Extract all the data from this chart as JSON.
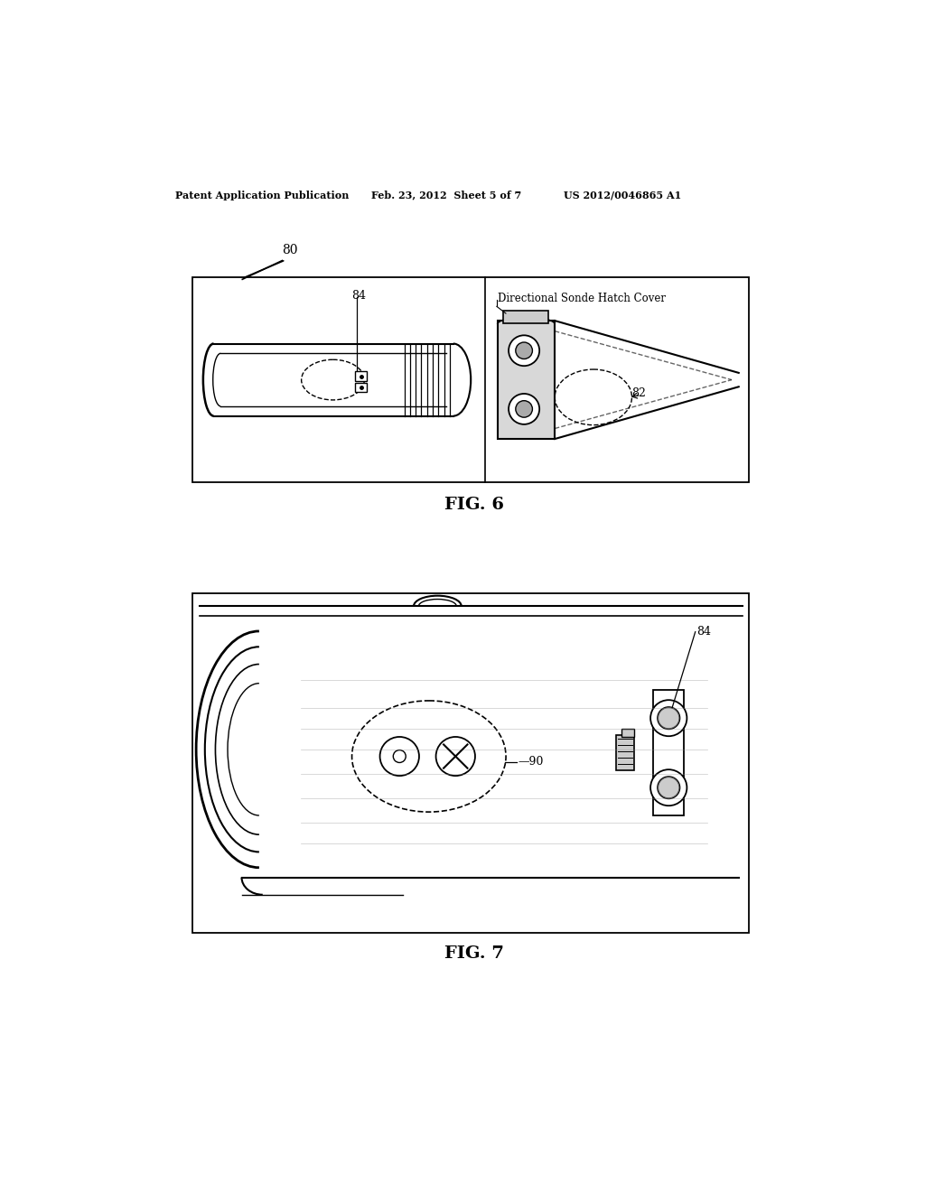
{
  "bg_color": "#ffffff",
  "header_left": "Patent Application Publication",
  "header_mid": "Feb. 23, 2012  Sheet 5 of 7",
  "header_right": "US 2012/0046865 A1",
  "fig6_label": "FIG. 6",
  "fig7_label": "FIG. 7",
  "label_80": "80",
  "label_82": "82",
  "label_84": "84",
  "label_84b": "84",
  "label_90": "90",
  "label_directional": "Directional Sonde Hatch Cover"
}
